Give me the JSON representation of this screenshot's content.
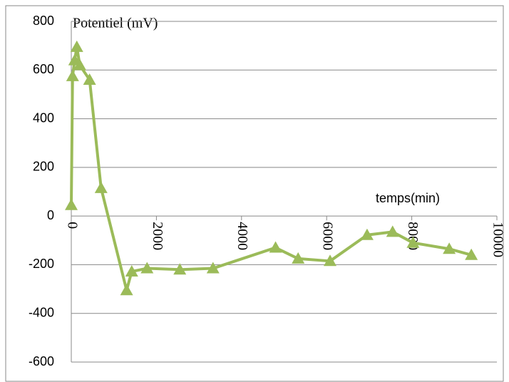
{
  "chart_data": {
    "type": "line",
    "ylabel": "Potentiel (mV)",
    "xlabel": "temps(min)",
    "x": [
      0,
      30,
      80,
      130,
      200,
      430,
      700,
      1300,
      1420,
      1780,
      2550,
      3330,
      4800,
      5330,
      6080,
      6950,
      7550,
      8030,
      8880,
      9400
    ],
    "series": [
      {
        "name": "Potentiel",
        "color": "#9bbb59",
        "values": [
          45,
          575,
          640,
          695,
          620,
          560,
          115,
          -305,
          -228,
          -215,
          -220,
          -215,
          -130,
          -175,
          -185,
          -78,
          -65,
          -110,
          -135,
          -160
        ]
      }
    ],
    "xlim": [
      0,
      10000
    ],
    "xticks": [
      0,
      2000,
      4000,
      6000,
      8000,
      10000
    ],
    "ylim": [
      -600,
      800
    ],
    "yticks": [
      -600,
      -400,
      -200,
      0,
      200,
      400,
      600,
      800
    ],
    "grid": true
  }
}
